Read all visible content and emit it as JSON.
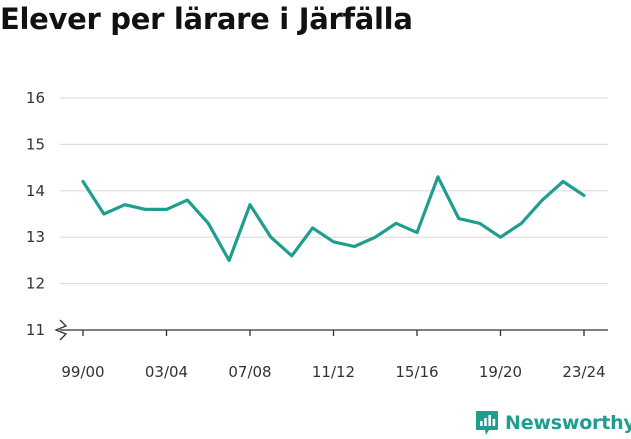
{
  "chart_data": {
    "type": "line",
    "title": "Elever per lärare i Järfälla",
    "x": [
      "99/00",
      "00/01",
      "01/02",
      "02/03",
      "03/04",
      "04/05",
      "05/06",
      "06/07",
      "07/08",
      "08/09",
      "09/10",
      "10/11",
      "11/12",
      "12/13",
      "13/14",
      "14/15",
      "15/16",
      "16/17",
      "17/18",
      "18/19",
      "19/20",
      "20/21",
      "21/22",
      "22/23",
      "23/24"
    ],
    "x_tick_labels": [
      "99/00",
      "03/04",
      "07/08",
      "11/12",
      "15/16",
      "19/20",
      "23/24"
    ],
    "series": [
      {
        "values": [
          14.2,
          13.5,
          13.7,
          13.6,
          13.6,
          13.8,
          13.3,
          12.5,
          13.7,
          13.0,
          12.6,
          13.2,
          12.9,
          12.8,
          13.0,
          13.3,
          13.1,
          14.3,
          13.4,
          13.3,
          13.0,
          13.3,
          13.8,
          14.2,
          13.9
        ]
      }
    ],
    "y_ticks": [
      11,
      12,
      13,
      14,
      15,
      16
    ],
    "ylim": [
      11,
      16
    ],
    "y_axis_break": true,
    "grid": "horizontal",
    "colors": {
      "line": "#1f9e8f",
      "grid": "#dddddd",
      "axis": "#333333"
    }
  },
  "brand": {
    "name": "Newsworthy",
    "logo_icon": "newsworthy-chart-logo-icon",
    "color": "#1f9e8f"
  }
}
